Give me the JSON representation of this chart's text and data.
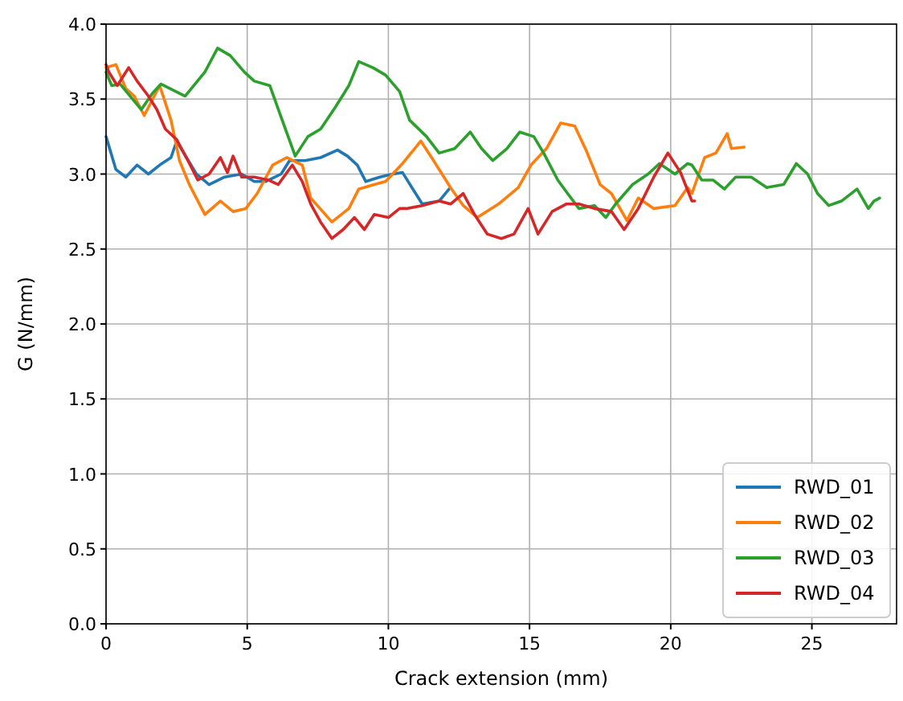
{
  "chart_data": {
    "type": "line",
    "xlabel": "Crack extension (mm)",
    "ylabel": "G (N/mm)",
    "xlim": [
      0,
      28
    ],
    "ylim": [
      0,
      4
    ],
    "xticks": [
      0,
      5,
      10,
      15,
      20,
      25
    ],
    "yticks": [
      {
        "value": 0,
        "label": "0.0"
      },
      0.5,
      {
        "value": 1,
        "label": "1.0"
      },
      1.5,
      {
        "value": 2,
        "label": "2.0"
      },
      2.5,
      {
        "value": 3,
        "label": "3.0"
      },
      3.5,
      {
        "value": 4,
        "label": "4.0"
      }
    ],
    "grid": true,
    "legend": "bottom right",
    "marker": "none",
    "line_style": "solid",
    "series": [
      {
        "name": "RWD_01",
        "color": "#1f77b4",
        "x": [
          0,
          0.35,
          0.7,
          1.1,
          1.5,
          1.9,
          2.3,
          2.5,
          2.85,
          3.2,
          3.65,
          4.2,
          4.8,
          5.25,
          5.65,
          6.2,
          6.5,
          7.05,
          7.6,
          8.2,
          8.55,
          8.9,
          9.2,
          9.7,
          10.15,
          10.5,
          11.2,
          11.8,
          12.15
        ],
        "values": [
          3.25,
          3.03,
          2.98,
          3.06,
          3.0,
          3.06,
          3.11,
          3.22,
          3.11,
          3.0,
          2.93,
          2.98,
          3.0,
          2.95,
          2.95,
          3.0,
          3.09,
          3.09,
          3.11,
          3.16,
          3.12,
          3.06,
          2.95,
          2.98,
          3.0,
          3.01,
          2.8,
          2.82,
          2.9
        ]
      },
      {
        "name": "RWD_02",
        "color": "#ff7f0e",
        "x": [
          0,
          0.35,
          0.7,
          1.0,
          1.35,
          1.9,
          2.3,
          2.6,
          2.95,
          3.5,
          4.05,
          4.5,
          4.95,
          5.35,
          5.9,
          6.4,
          6.95,
          7.25,
          8.0,
          8.6,
          8.95,
          9.5,
          9.9,
          10.5,
          11.15,
          11.6,
          12.2,
          12.65,
          13.15,
          13.9,
          14.6,
          15.05,
          15.6,
          16.1,
          16.6,
          17.0,
          17.5,
          17.9,
          18.45,
          18.85,
          19.4,
          20.15,
          20.6,
          20.75,
          21.2,
          21.6,
          22.0,
          22.15,
          22.6
        ],
        "values": [
          3.71,
          3.73,
          3.57,
          3.52,
          3.39,
          3.59,
          3.36,
          3.09,
          2.93,
          2.73,
          2.82,
          2.75,
          2.77,
          2.87,
          3.06,
          3.11,
          3.06,
          2.84,
          2.68,
          2.77,
          2.9,
          2.93,
          2.95,
          3.07,
          3.22,
          3.09,
          2.91,
          2.79,
          2.71,
          2.8,
          2.91,
          3.06,
          3.17,
          3.34,
          3.32,
          3.16,
          2.93,
          2.87,
          2.69,
          2.84,
          2.77,
          2.79,
          2.91,
          2.87,
          3.11,
          3.14,
          3.27,
          3.17,
          3.18
        ]
      },
      {
        "name": "RWD_03",
        "color": "#2ca02c",
        "x": [
          0,
          0.2,
          0.5,
          1.25,
          1.65,
          1.95,
          2.8,
          3.5,
          3.95,
          4.4,
          4.9,
          5.25,
          5.8,
          6.2,
          6.7,
          7.15,
          7.6,
          8.1,
          8.6,
          8.95,
          9.45,
          9.9,
          10.4,
          10.75,
          11.35,
          11.8,
          12.35,
          12.9,
          13.3,
          13.7,
          14.2,
          14.65,
          15.15,
          15.5,
          16.0,
          16.35,
          16.75,
          17.3,
          17.7,
          18.05,
          18.65,
          19.2,
          19.6,
          20.15,
          20.6,
          20.75,
          21.1,
          21.5,
          21.9,
          22.3,
          22.85,
          23.4,
          24.0,
          24.45,
          24.85,
          25.2,
          25.6,
          26.05,
          26.6,
          27.0,
          27.2,
          27.4
        ],
        "values": [
          3.68,
          3.59,
          3.6,
          3.43,
          3.54,
          3.6,
          3.52,
          3.68,
          3.84,
          3.79,
          3.68,
          3.62,
          3.59,
          3.38,
          3.12,
          3.25,
          3.3,
          3.44,
          3.59,
          3.75,
          3.71,
          3.66,
          3.55,
          3.36,
          3.25,
          3.14,
          3.17,
          3.28,
          3.17,
          3.09,
          3.17,
          3.28,
          3.25,
          3.14,
          2.96,
          2.87,
          2.77,
          2.79,
          2.71,
          2.8,
          2.93,
          3.0,
          3.07,
          3.0,
          3.07,
          3.06,
          2.96,
          2.96,
          2.9,
          2.98,
          2.98,
          2.91,
          2.93,
          3.07,
          3.0,
          2.87,
          2.79,
          2.82,
          2.9,
          2.77,
          2.82,
          2.84
        ]
      },
      {
        "name": "RWD_04",
        "color": "#d62728",
        "x": [
          0,
          0.1,
          0.4,
          0.8,
          1.1,
          1.5,
          1.8,
          2.1,
          2.5,
          2.9,
          3.25,
          3.65,
          4.05,
          4.3,
          4.5,
          4.8,
          5.25,
          5.75,
          6.1,
          6.6,
          6.95,
          7.25,
          7.6,
          8.0,
          8.4,
          8.8,
          9.15,
          9.5,
          10.0,
          10.4,
          10.65,
          11.2,
          11.8,
          12.2,
          12.65,
          13.05,
          13.5,
          14.0,
          14.45,
          14.95,
          15.3,
          15.8,
          16.3,
          16.75,
          17.3,
          17.9,
          18.35,
          18.85,
          19.4,
          19.9,
          20.35,
          20.75,
          20.85
        ],
        "values": [
          3.73,
          3.68,
          3.59,
          3.71,
          3.62,
          3.52,
          3.43,
          3.3,
          3.23,
          3.09,
          2.96,
          3.0,
          3.11,
          3.01,
          3.12,
          2.98,
          2.98,
          2.96,
          2.93,
          3.06,
          2.95,
          2.8,
          2.68,
          2.57,
          2.63,
          2.71,
          2.63,
          2.73,
          2.71,
          2.77,
          2.77,
          2.79,
          2.82,
          2.8,
          2.87,
          2.73,
          2.6,
          2.57,
          2.6,
          2.77,
          2.6,
          2.75,
          2.8,
          2.8,
          2.77,
          2.75,
          2.63,
          2.77,
          2.98,
          3.14,
          3.01,
          2.82,
          2.82
        ]
      }
    ]
  }
}
